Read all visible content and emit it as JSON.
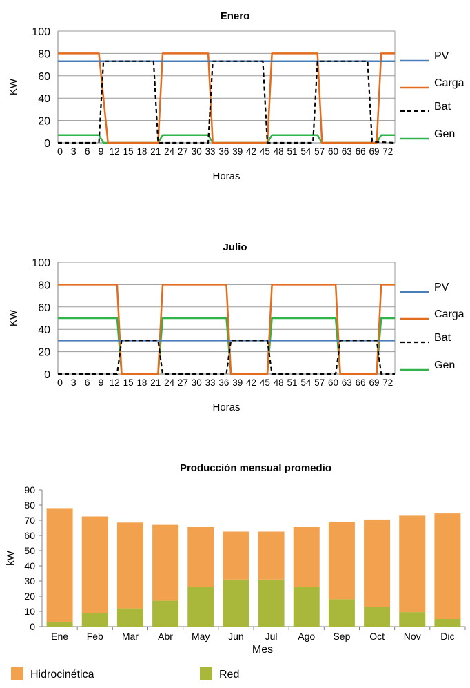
{
  "chart_data": [
    {
      "type": "line",
      "title": "Enero",
      "xlabel": "Horas",
      "ylabel": "KW",
      "ylim": [
        0,
        100
      ],
      "yticks": [
        0,
        20,
        40,
        60,
        80,
        100
      ],
      "xticks": [
        0,
        3,
        6,
        9,
        12,
        15,
        18,
        21,
        24,
        27,
        30,
        33,
        36,
        39,
        42,
        45,
        48,
        51,
        54,
        57,
        60,
        63,
        66,
        69,
        72
      ],
      "grid": true,
      "legend_position": "right",
      "series": [
        {
          "name": "PV",
          "color": "#4a7ebb",
          "style": "solid",
          "points": [
            [
              0,
              73
            ],
            [
              74,
              73
            ]
          ]
        },
        {
          "name": "Carga",
          "color": "#e36c1f",
          "style": "solid",
          "points": [
            [
              0,
              80
            ],
            [
              9,
              80
            ],
            [
              11,
              0
            ],
            [
              22,
              0
            ],
            [
              23,
              80
            ],
            [
              33,
              80
            ],
            [
              34,
              0
            ],
            [
              46,
              0
            ],
            [
              47,
              80
            ],
            [
              57,
              80
            ],
            [
              58,
              0
            ],
            [
              70,
              0
            ],
            [
              71,
              80
            ],
            [
              74,
              80
            ]
          ]
        },
        {
          "name": "Bat",
          "color": "#000000",
          "style": "dashed",
          "points": [
            [
              0,
              0
            ],
            [
              9,
              0
            ],
            [
              10,
              73
            ],
            [
              21,
              73
            ],
            [
              22,
              0
            ],
            [
              33,
              0
            ],
            [
              34,
              73
            ],
            [
              45,
              73
            ],
            [
              46,
              0
            ],
            [
              56,
              0
            ],
            [
              57,
              73
            ],
            [
              68,
              73
            ],
            [
              69,
              1
            ],
            [
              74,
              0
            ]
          ]
        },
        {
          "name": "Gen",
          "color": "#2fb34a",
          "style": "solid",
          "points": [
            [
              0,
              7
            ],
            [
              9,
              7
            ],
            [
              10,
              0
            ],
            [
              22,
              0
            ],
            [
              23,
              7
            ],
            [
              33,
              7
            ],
            [
              34,
              0
            ],
            [
              46,
              0
            ],
            [
              47,
              7
            ],
            [
              57,
              7
            ],
            [
              58,
              0
            ],
            [
              70,
              0
            ],
            [
              71,
              7
            ],
            [
              74,
              7
            ]
          ]
        }
      ]
    },
    {
      "type": "line",
      "title": "Julio",
      "xlabel": "Horas",
      "ylabel": "KW",
      "ylim": [
        0,
        100
      ],
      "yticks": [
        0,
        20,
        40,
        60,
        80,
        100
      ],
      "xticks": [
        0,
        3,
        6,
        9,
        12,
        15,
        18,
        21,
        24,
        27,
        30,
        33,
        36,
        39,
        42,
        45,
        48,
        51,
        54,
        57,
        60,
        63,
        66,
        69,
        72
      ],
      "grid": true,
      "legend_position": "right",
      "series": [
        {
          "name": "PV",
          "color": "#4a7ebb",
          "style": "solid",
          "points": [
            [
              0,
              30
            ],
            [
              74,
              30
            ]
          ]
        },
        {
          "name": "Carga",
          "color": "#e36c1f",
          "style": "solid",
          "points": [
            [
              0,
              80
            ],
            [
              13,
              80
            ],
            [
              14,
              0
            ],
            [
              22,
              0
            ],
            [
              23,
              80
            ],
            [
              37,
              80
            ],
            [
              38,
              0
            ],
            [
              46,
              0
            ],
            [
              47,
              80
            ],
            [
              61,
              80
            ],
            [
              62,
              0
            ],
            [
              70,
              0
            ],
            [
              71,
              80
            ],
            [
              74,
              80
            ]
          ]
        },
        {
          "name": "Bat",
          "color": "#000000",
          "style": "dashed",
          "points": [
            [
              0,
              0
            ],
            [
              13,
              0
            ],
            [
              14,
              30
            ],
            [
              22,
              30
            ],
            [
              23,
              0
            ],
            [
              37,
              0
            ],
            [
              38,
              30
            ],
            [
              46,
              30
            ],
            [
              47,
              0
            ],
            [
              61,
              0
            ],
            [
              62,
              30
            ],
            [
              70,
              30
            ],
            [
              71,
              0
            ],
            [
              74,
              0
            ]
          ]
        },
        {
          "name": "Gen",
          "color": "#2fb34a",
          "style": "solid",
          "points": [
            [
              0,
              50
            ],
            [
              13,
              50
            ],
            [
              14,
              0
            ],
            [
              22,
              0
            ],
            [
              23,
              50
            ],
            [
              37,
              50
            ],
            [
              38,
              0
            ],
            [
              46,
              0
            ],
            [
              47,
              50
            ],
            [
              61,
              50
            ],
            [
              62,
              0
            ],
            [
              70,
              0
            ],
            [
              71,
              50
            ],
            [
              74,
              50
            ]
          ]
        }
      ]
    },
    {
      "type": "bar",
      "stacked": true,
      "title": "Producción mensual promedio",
      "xlabel": "Mes",
      "ylabel": "kW",
      "ylim": [
        0,
        90
      ],
      "yticks": [
        0,
        10,
        20,
        30,
        40,
        50,
        60,
        70,
        80,
        90
      ],
      "grid": false,
      "legend_position": "bottom",
      "categories": [
        "Ene",
        "Feb",
        "Mar",
        "Abr",
        "May",
        "Jun",
        "Jul",
        "Ago",
        "Sep",
        "Oct",
        "Nov",
        "Dic"
      ],
      "series": [
        {
          "name": "Red",
          "color": "#a9b83a",
          "values": [
            3,
            9,
            12,
            17,
            26,
            31,
            31,
            26,
            18,
            13,
            9.5,
            5
          ]
        },
        {
          "name": "Hidrocinética",
          "color": "#f2a24f",
          "values": [
            75,
            63.5,
            56.5,
            50,
            39.5,
            31.5,
            31.5,
            39.5,
            51,
            57.5,
            63.5,
            69.5
          ]
        }
      ]
    }
  ]
}
